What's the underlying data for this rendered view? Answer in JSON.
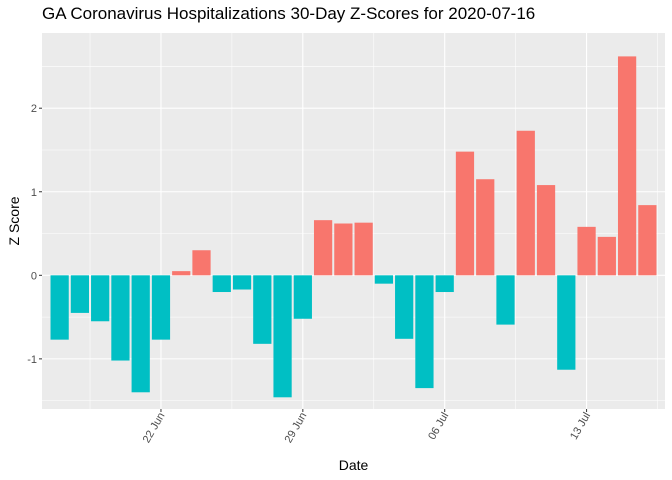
{
  "chart_data": {
    "type": "bar",
    "title": "GA Coronavirus Hospitalizations 30-Day Z-Scores for 2020-07-16",
    "xlabel": "Date",
    "ylabel": "Z Score",
    "ylim": [
      -1.6,
      2.9
    ],
    "y_ticks": [
      -1,
      0,
      1,
      2
    ],
    "y_tick_labels": [
      "-1",
      "0",
      "1",
      "2"
    ],
    "x_ticks": [
      "2020-06-22",
      "2020-06-29",
      "2020-07-06",
      "2020-07-13"
    ],
    "x_tick_labels": [
      "22 Jun",
      "29 Jun",
      "06 Jul",
      "13 Jul"
    ],
    "x": [
      "2020-06-17",
      "2020-06-18",
      "2020-06-19",
      "2020-06-20",
      "2020-06-21",
      "2020-06-22",
      "2020-06-23",
      "2020-06-24",
      "2020-06-25",
      "2020-06-26",
      "2020-06-27",
      "2020-06-28",
      "2020-06-29",
      "2020-06-30",
      "2020-07-01",
      "2020-07-02",
      "2020-07-03",
      "2020-07-04",
      "2020-07-05",
      "2020-07-06",
      "2020-07-07",
      "2020-07-08",
      "2020-07-09",
      "2020-07-10",
      "2020-07-11",
      "2020-07-12",
      "2020-07-13",
      "2020-07-14",
      "2020-07-15",
      "2020-07-16"
    ],
    "values": [
      -0.77,
      -0.45,
      -0.55,
      -1.02,
      -1.4,
      -0.77,
      0.05,
      0.3,
      -0.2,
      -0.17,
      -0.82,
      -1.46,
      -0.52,
      0.66,
      0.62,
      0.63,
      -0.1,
      -0.76,
      -1.35,
      -0.2,
      1.48,
      1.15,
      -0.59,
      1.73,
      1.08,
      -1.13,
      0.58,
      0.46,
      2.62,
      0.84
    ],
    "colors": {
      "positive": "#F8766D",
      "negative": "#00BFC4"
    },
    "grid": true,
    "panel_background": "#EBEBEB",
    "gridline_color": "#ffffff",
    "legend": "none"
  }
}
